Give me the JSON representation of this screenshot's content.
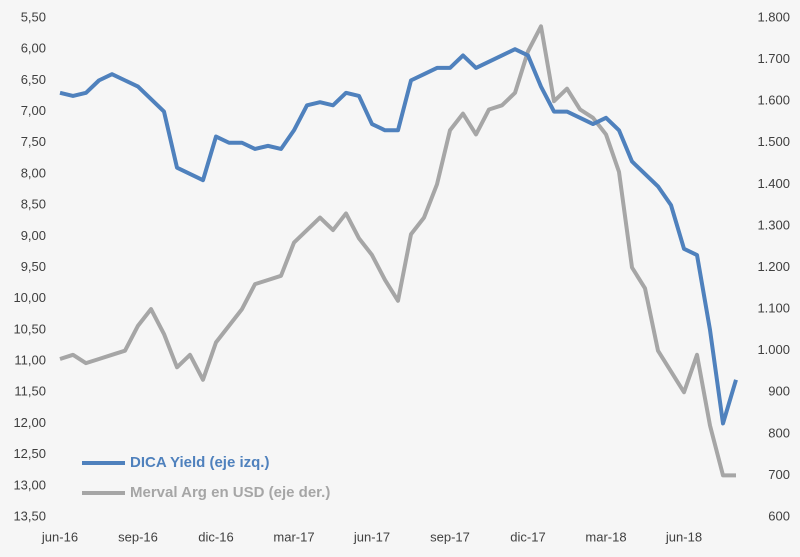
{
  "chart_data": {
    "type": "line",
    "categories": [
      "jun-16",
      null,
      null,
      null,
      null,
      null,
      "sep-16",
      null,
      null,
      null,
      null,
      null,
      "dic-16",
      null,
      null,
      null,
      null,
      null,
      "mar-17",
      null,
      null,
      null,
      null,
      null,
      "jun-17",
      null,
      null,
      null,
      null,
      null,
      "sep-17",
      null,
      null,
      null,
      null,
      null,
      "dic-17",
      null,
      null,
      null,
      null,
      null,
      "mar-18",
      null,
      null,
      null,
      null,
      null,
      "jun-18",
      null,
      null,
      null,
      null
    ],
    "series": [
      {
        "name": "DICA Yield (eje izq.)",
        "color": "#4f81bd",
        "axis": "y",
        "values": [
          6.7,
          6.75,
          6.7,
          6.5,
          6.4,
          6.5,
          6.6,
          6.8,
          7.0,
          7.9,
          8.0,
          8.1,
          7.4,
          7.5,
          7.5,
          7.6,
          7.55,
          7.6,
          7.3,
          6.9,
          6.85,
          6.9,
          6.7,
          6.75,
          7.2,
          7.3,
          7.3,
          6.5,
          6.4,
          6.3,
          6.3,
          6.1,
          6.3,
          6.2,
          6.1,
          6.0,
          6.1,
          6.6,
          7.0,
          7.0,
          7.1,
          7.2,
          7.1,
          7.3,
          7.8,
          8.0,
          8.2,
          8.5,
          9.2,
          9.3,
          10.5,
          12.0,
          11.3
        ]
      },
      {
        "name": "Merval Arg en USD (eje der.)",
        "color": "#a6a6a6",
        "axis": "y2",
        "values": [
          980,
          990,
          970,
          980,
          990,
          1000,
          1060,
          1100,
          1040,
          960,
          990,
          930,
          1020,
          1060,
          1100,
          1160,
          1170,
          1180,
          1260,
          1290,
          1320,
          1290,
          1330,
          1270,
          1230,
          1170,
          1120,
          1280,
          1320,
          1400,
          1530,
          1570,
          1520,
          1580,
          1590,
          1620,
          1720,
          1780,
          1600,
          1630,
          1580,
          1560,
          1520,
          1430,
          1200,
          1150,
          1000,
          950,
          900,
          990,
          820,
          700,
          700
        ]
      }
    ],
    "ylim": [
      13.5,
      5.5
    ],
    "yticks": [
      {
        "value": 5.5,
        "label": "5,50"
      },
      {
        "value": 6.0,
        "label": "6,00"
      },
      {
        "value": 6.5,
        "label": "6,50"
      },
      {
        "value": 7.0,
        "label": "7,00"
      },
      {
        "value": 7.5,
        "label": "7,50"
      },
      {
        "value": 8.0,
        "label": "8,00"
      },
      {
        "value": 8.5,
        "label": "8,50"
      },
      {
        "value": 9.0,
        "label": "9,00"
      },
      {
        "value": 9.5,
        "label": "9,50"
      },
      {
        "value": 10.0,
        "label": "10,00"
      },
      {
        "value": 10.5,
        "label": "10,50"
      },
      {
        "value": 11.0,
        "label": "11,00"
      },
      {
        "value": 11.5,
        "label": "11,50"
      },
      {
        "value": 12.0,
        "label": "12,00"
      },
      {
        "value": 12.5,
        "label": "12,50"
      },
      {
        "value": 13.0,
        "label": "13,00"
      },
      {
        "value": 13.5,
        "label": "13,50"
      }
    ],
    "y2lim": [
      600,
      1800
    ],
    "y2ticks": [
      600,
      700,
      800,
      900,
      {
        "value": 1000,
        "label": "1.000"
      },
      {
        "value": 1100,
        "label": "1.100"
      },
      {
        "value": 1200,
        "label": "1.200"
      },
      {
        "value": 1300,
        "label": "1.300"
      },
      {
        "value": 1400,
        "label": "1.400"
      },
      {
        "value": 1500,
        "label": "1.500"
      },
      {
        "value": 1600,
        "label": "1.600"
      },
      {
        "value": 1700,
        "label": "1.700"
      },
      {
        "value": 1800,
        "label": "1.800"
      }
    ],
    "grid": false,
    "legend": "bottom-left"
  }
}
